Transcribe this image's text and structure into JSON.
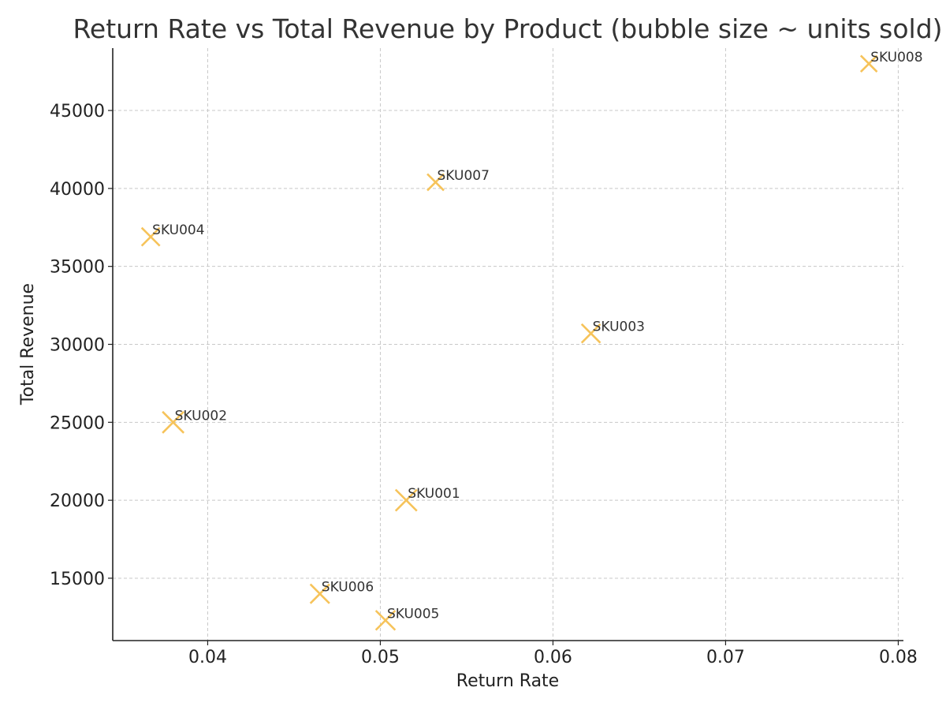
{
  "chart_data": {
    "type": "scatter",
    "title": "Return Rate vs Total Revenue by Product (bubble size ~ units sold)",
    "xlabel": "Return Rate",
    "ylabel": "Total Revenue",
    "xlim": [
      0.0345,
      0.0803
    ],
    "ylim": [
      11000,
      49000
    ],
    "xticks": [
      0.04,
      0.05,
      0.06,
      0.07,
      0.08
    ],
    "xtick_labels": [
      "0.04",
      "0.05",
      "0.06",
      "0.07",
      "0.08"
    ],
    "yticks": [
      15000,
      20000,
      25000,
      30000,
      35000,
      40000,
      45000
    ],
    "ytick_labels": [
      "15000",
      "20000",
      "25000",
      "30000",
      "35000",
      "40000",
      "45000"
    ],
    "grid": true,
    "marker": "x",
    "marker_color": "#f6c35a",
    "points": [
      {
        "label": "SKU001",
        "x": 0.0515,
        "y": 20000,
        "units_sold": 900
      },
      {
        "label": "SKU002",
        "x": 0.038,
        "y": 25000,
        "units_sold": 900
      },
      {
        "label": "SKU003",
        "x": 0.0622,
        "y": 30700,
        "units_sold": 550
      },
      {
        "label": "SKU004",
        "x": 0.0367,
        "y": 36900,
        "units_sold": 480
      },
      {
        "label": "SKU005",
        "x": 0.0503,
        "y": 12300,
        "units_sold": 640
      },
      {
        "label": "SKU006",
        "x": 0.0465,
        "y": 14000,
        "units_sold": 600
      },
      {
        "label": "SKU007",
        "x": 0.0532,
        "y": 40400,
        "units_sold": 320
      },
      {
        "label": "SKU008",
        "x": 0.0783,
        "y": 48000,
        "units_sold": 300
      }
    ]
  }
}
